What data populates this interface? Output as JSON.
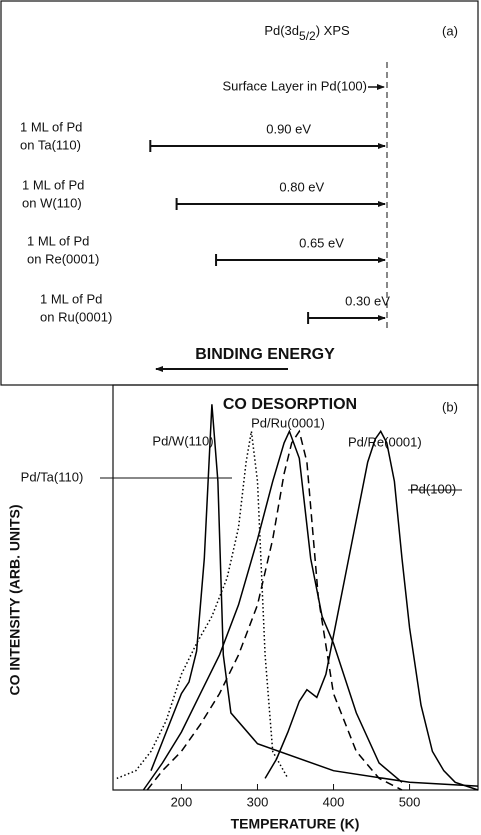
{
  "chart_data": [
    {
      "type": "shift",
      "title_parts": [
        "Pd(3d",
        "5/2",
        ") XPS"
      ],
      "panel_label": "(a)",
      "reference_label": "Surface Layer in Pd(100)",
      "categories": [
        [
          "1 ML of Pd",
          "on Ta(110)"
        ],
        [
          "1 ML of Pd",
          "on W(110)"
        ],
        [
          "1 ML of Pd",
          "on Re(0001)"
        ],
        [
          "1 ML of Pd",
          "on Ru(0001)"
        ]
      ],
      "values": [
        0.9,
        0.8,
        0.65,
        0.3
      ],
      "value_labels": [
        "0.90 eV",
        "0.80 eV",
        "0.65 eV",
        "0.30 eV"
      ],
      "axis_label": "BINDING ENERGY"
    },
    {
      "type": "line",
      "title": "CO DESORPTION",
      "panel_label": "(b)",
      "x_label": "TEMPERATURE (K)",
      "y_label": "CO INTENSITY (ARB. UNITS)",
      "xlim": [
        110,
        590
      ],
      "ylim": [
        0,
        1.05
      ],
      "xticks": [
        200,
        300,
        400,
        500
      ],
      "series": [
        {
          "name": "Pd/Ta(110)",
          "color": "#000000",
          "dash": "solid",
          "x": [
            160,
            180,
            200,
            210,
            220,
            230,
            240,
            248,
            255,
            265,
            300,
            400,
            500,
            590
          ],
          "values": [
            0.05,
            0.15,
            0.25,
            0.28,
            0.36,
            0.6,
            1.0,
            0.8,
            0.35,
            0.2,
            0.12,
            0.05,
            0.02,
            0.01
          ]
        },
        {
          "name": "Pd/W(110)",
          "color": "#000000",
          "dash": "dotted",
          "x": [
            115,
            140,
            160,
            180,
            200,
            220,
            240,
            260,
            275,
            285,
            292,
            300,
            310,
            320,
            340
          ],
          "values": [
            0.03,
            0.05,
            0.1,
            0.18,
            0.3,
            0.38,
            0.45,
            0.55,
            0.68,
            0.85,
            0.93,
            0.8,
            0.35,
            0.1,
            0.03
          ]
        },
        {
          "name": "Pd/Ru(0001)",
          "color": "#000000",
          "dash": "solid",
          "x": [
            150,
            175,
            200,
            225,
            250,
            275,
            300,
            320,
            335,
            342,
            355,
            370,
            385,
            400,
            430,
            460,
            490
          ],
          "values": [
            0,
            0.07,
            0.15,
            0.25,
            0.35,
            0.48,
            0.65,
            0.8,
            0.9,
            0.93,
            0.86,
            0.6,
            0.45,
            0.38,
            0.2,
            0.07,
            0.02
          ]
        },
        {
          "name": "Pd/Re(0001)",
          "color": "#000000",
          "dash": "dashed",
          "x": [
            155,
            175,
            200,
            225,
            250,
            275,
            300,
            320,
            335,
            345,
            355,
            365,
            380,
            400,
            430,
            460,
            490
          ],
          "values": [
            0,
            0.05,
            0.1,
            0.17,
            0.25,
            0.35,
            0.48,
            0.65,
            0.82,
            0.9,
            0.93,
            0.85,
            0.5,
            0.25,
            0.1,
            0.03,
            0
          ]
        },
        {
          "name": "Pd(100)",
          "color": "#000000",
          "dash": "solid",
          "x": [
            310,
            325,
            340,
            355,
            365,
            378,
            390,
            400,
            415,
            430,
            445,
            455,
            462,
            470,
            480,
            490,
            500,
            515,
            530,
            545,
            560,
            590
          ],
          "values": [
            0.03,
            0.08,
            0.15,
            0.23,
            0.26,
            0.24,
            0.3,
            0.4,
            0.55,
            0.7,
            0.85,
            0.91,
            0.93,
            0.9,
            0.8,
            0.6,
            0.42,
            0.22,
            0.1,
            0.05,
            0.02,
            0
          ]
        }
      ]
    }
  ]
}
